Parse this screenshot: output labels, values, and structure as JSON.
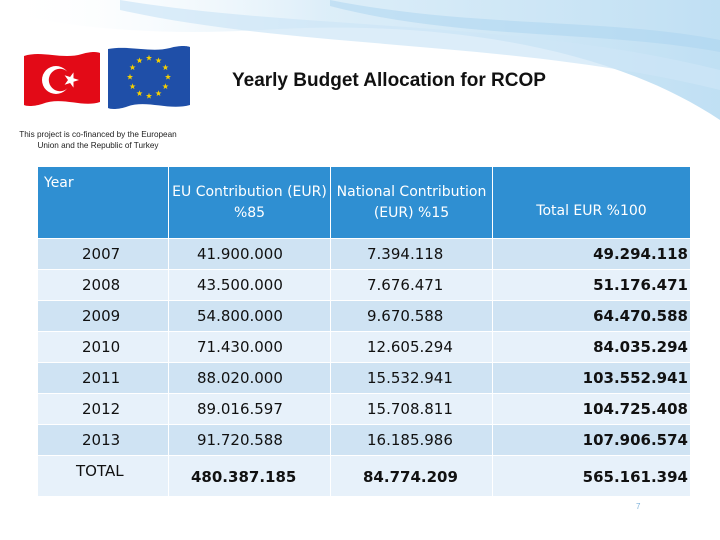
{
  "title": "Yearly Budget Allocation for RCOP",
  "cofinance_note": "This project is co-financed by the European Union and the Republic of Turkey",
  "logos": {
    "turkey_flag": "turkey-flag-icon",
    "eu_flag": "eu-flag-icon"
  },
  "colors": {
    "header_bg": "#2f8fd2",
    "row_odd": "#cfe3f3",
    "row_even": "#e7f1fa",
    "turkey_red": "#e30a17",
    "eu_blue": "#1f4fa8",
    "eu_gold": "#f5d000"
  },
  "table": {
    "headers": {
      "year": "Year",
      "eu": "EU Contribution (EUR) %85",
      "national": "National Contribution (EUR) %15",
      "total": "Total EUR %100"
    },
    "rows": [
      {
        "year": "2007",
        "eu": "41.900.000",
        "national": "7.394.118",
        "total": "49.294.118"
      },
      {
        "year": "2008",
        "eu": "43.500.000",
        "national": "7.676.471",
        "total": "51.176.471"
      },
      {
        "year": "2009",
        "eu": "54.800.000",
        "national": "9.670.588",
        "total": "64.470.588"
      },
      {
        "year": "2010",
        "eu": "71.430.000",
        "national": "12.605.294",
        "total": "84.035.294"
      },
      {
        "year": "2011",
        "eu": "88.020.000",
        "national": "15.532.941",
        "total": "103.552.941"
      },
      {
        "year": "2012",
        "eu": "89.016.597",
        "national": "15.708.811",
        "total": "104.725.408"
      },
      {
        "year": "2013",
        "eu": "91.720.588",
        "national": "16.185.986",
        "total": "107.906.574"
      }
    ],
    "total_row": {
      "year": "TOTAL",
      "eu": "480.387.185",
      "national": "84.774.209",
      "total": "565.161.394"
    }
  },
  "page_number": "7"
}
